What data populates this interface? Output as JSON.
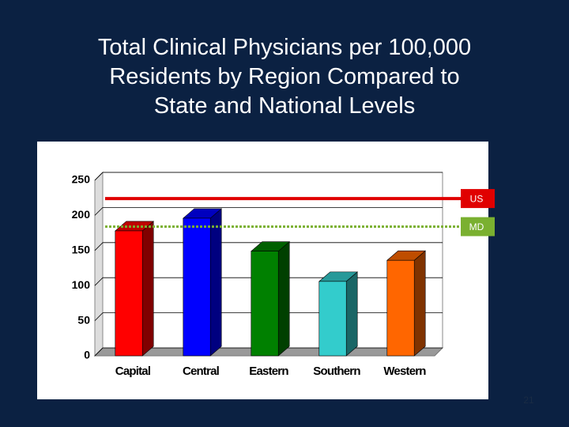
{
  "chart_data": {
    "type": "bar3d",
    "title": [
      "Total Clinical Physicians per 100,000",
      "Residents by Region Compared to",
      "State and National Levels"
    ],
    "categories": [
      "Capital",
      "Central",
      "Eastern",
      "Southern",
      "Western"
    ],
    "values": [
      178,
      196,
      149,
      106,
      136
    ],
    "colors": [
      "#ff0000",
      "#0000ff",
      "#008000",
      "#33cccc",
      "#ff6600"
    ],
    "ylim": [
      0,
      250
    ],
    "yticks": [
      0,
      50,
      100,
      150,
      200,
      250
    ],
    "grid": true,
    "reference_lines": [
      {
        "name": "US",
        "value": 224,
        "color": "#e00000",
        "style": "solid"
      },
      {
        "name": "MD",
        "value": 184,
        "color": "#7ab030",
        "style": "dotted"
      }
    ]
  },
  "page_number": "21"
}
